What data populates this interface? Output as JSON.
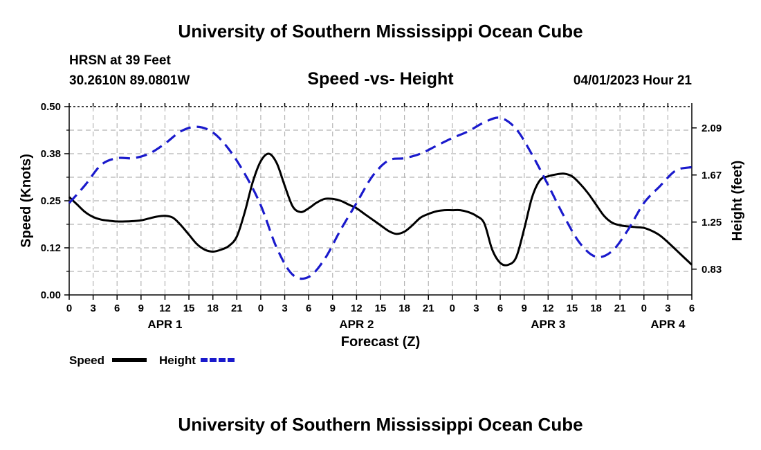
{
  "header": {
    "title_top": "University of Southern Mississippi Ocean Cube",
    "station": "HRSN at 39 Feet",
    "coords": "30.2610N  89.0801W",
    "subtitle": "Speed -vs- Height",
    "datetime": "04/01/2023 Hour 21",
    "title_bottom": "University of Southern Mississippi Ocean Cube"
  },
  "colors": {
    "speed": "#000000",
    "height": "#1a1acc",
    "grid": "#b4b4b4"
  },
  "chart_data": {
    "type": "line",
    "title": "Speed -vs- Height",
    "xlabel": "Forecast (Z)",
    "ylabel": "Speed (Knots)",
    "y2label": "Height (feet)",
    "xlim": [
      0,
      78
    ],
    "ylim": [
      0,
      0.5
    ],
    "y2lim": [
      0.6,
      2.28
    ],
    "x_ticks": [
      0,
      3,
      6,
      9,
      12,
      15,
      18,
      21,
      24,
      27,
      30,
      33,
      36,
      39,
      42,
      45,
      48,
      51,
      54,
      57,
      60,
      63,
      66,
      69,
      72,
      75,
      78
    ],
    "x_tick_labels": [
      "0",
      "3",
      "6",
      "9",
      "12",
      "15",
      "18",
      "21",
      "0",
      "3",
      "6",
      "9",
      "12",
      "15",
      "18",
      "21",
      "0",
      "3",
      "6",
      "9",
      "12",
      "15",
      "18",
      "21",
      "0",
      "3",
      "6"
    ],
    "y_ticks": [
      0,
      0.125,
      0.25,
      0.375,
      0.5
    ],
    "y_tick_labels": [
      "0.00",
      "0.12",
      "0.25",
      "0.38",
      "0.50"
    ],
    "y2_ticks": [
      0.83,
      1.25,
      1.67,
      2.09
    ],
    "y2_tick_labels": [
      "0.83",
      "1.25",
      "1.67",
      "2.09"
    ],
    "day_labels": [
      {
        "x": 12,
        "label": "APR 1"
      },
      {
        "x": 36,
        "label": "APR 2"
      },
      {
        "x": 60,
        "label": "APR 3"
      },
      {
        "x": 75,
        "label": "APR 4"
      }
    ],
    "grid": true,
    "legend_position": "bottom-left",
    "series": [
      {
        "name": "Speed",
        "axis": "left",
        "style": "solid",
        "x": [
          0,
          1,
          2,
          3,
          4,
          5,
          6,
          7,
          8,
          9,
          10,
          11,
          12,
          13,
          14,
          15,
          16,
          17,
          18,
          19,
          20,
          21,
          22,
          23,
          24,
          25,
          26,
          27,
          28,
          29,
          30,
          31,
          32,
          33,
          34,
          35,
          36,
          37,
          38,
          39,
          40,
          41,
          42,
          43,
          44,
          45,
          46,
          47,
          48,
          49,
          50,
          51,
          52,
          53,
          54,
          55,
          56,
          57,
          58,
          59,
          60,
          61,
          62,
          63,
          64,
          65,
          66,
          67,
          68,
          69,
          70,
          71,
          72,
          73,
          74,
          75,
          76,
          77,
          78
        ],
        "values": [
          0.26,
          0.24,
          0.22,
          0.207,
          0.2,
          0.197,
          0.195,
          0.195,
          0.196,
          0.198,
          0.203,
          0.208,
          0.21,
          0.205,
          0.185,
          0.16,
          0.135,
          0.12,
          0.115,
          0.12,
          0.13,
          0.155,
          0.22,
          0.3,
          0.355,
          0.375,
          0.35,
          0.29,
          0.235,
          0.22,
          0.23,
          0.245,
          0.255,
          0.255,
          0.25,
          0.24,
          0.23,
          0.215,
          0.2,
          0.185,
          0.17,
          0.162,
          0.168,
          0.185,
          0.205,
          0.215,
          0.222,
          0.225,
          0.225,
          0.225,
          0.22,
          0.21,
          0.19,
          0.12,
          0.085,
          0.08,
          0.1,
          0.175,
          0.26,
          0.305,
          0.315,
          0.32,
          0.322,
          0.315,
          0.295,
          0.27,
          0.24,
          0.21,
          0.192,
          0.185,
          0.182,
          0.18,
          0.178,
          0.17,
          0.158,
          0.14,
          0.12,
          0.1,
          0.08
        ]
      },
      {
        "name": "Height",
        "axis": "right",
        "style": "dashed",
        "x": [
          0,
          2,
          4,
          6,
          8,
          10,
          12,
          14,
          16,
          18,
          20,
          22,
          24,
          26,
          28,
          30,
          32,
          34,
          36,
          38,
          40,
          42,
          44,
          46,
          48,
          50,
          52,
          54,
          56,
          58,
          60,
          62,
          64,
          66,
          68,
          70,
          72,
          74,
          76,
          78
        ],
        "values": [
          1.42,
          1.58,
          1.76,
          1.82,
          1.82,
          1.86,
          1.95,
          2.06,
          2.1,
          2.05,
          1.9,
          1.68,
          1.4,
          1.02,
          0.78,
          0.76,
          0.92,
          1.18,
          1.42,
          1.66,
          1.8,
          1.82,
          1.86,
          1.93,
          2.0,
          2.06,
          2.14,
          2.18,
          2.08,
          1.85,
          1.58,
          1.3,
          1.06,
          0.94,
          0.99,
          1.18,
          1.42,
          1.57,
          1.71,
          1.74
        ]
      }
    ]
  },
  "legend": {
    "speed_label": "Speed",
    "height_label": "Height"
  }
}
